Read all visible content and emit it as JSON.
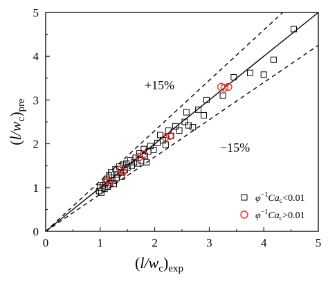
{
  "chart_data": {
    "type": "scatter",
    "xlim": [
      0,
      5
    ],
    "ylim": [
      0,
      5
    ],
    "x_ticks": [
      "0",
      "1",
      "2",
      "3",
      "4",
      "5"
    ],
    "y_ticks": [
      "0",
      "1",
      "2",
      "3",
      "4",
      "5"
    ],
    "xlabel": {
      "pre": "(",
      "main": "l/w",
      "sub": "c",
      "post": ")",
      "sub2": "exp"
    },
    "ylabel": {
      "pre": "(",
      "main": "l/w",
      "sub": "c",
      "post": ")",
      "sub2": "pre"
    },
    "grid": false,
    "legend_position": "bottom-right",
    "reference_lines": [
      {
        "kind": "solid",
        "slope": 1.0
      },
      {
        "kind": "dashed",
        "slope": 1.15,
        "label": "+15%"
      },
      {
        "kind": "dashed",
        "slope": 0.85,
        "label": "−15%"
      }
    ],
    "series": [
      {
        "label_prefix": "φ",
        "label_sup": "−1",
        "label_ca": "Ca",
        "label_sub": "c",
        "label_rel": "<0.01",
        "marker": "square",
        "color": "#000000",
        "points": [
          [
            0.98,
            0.92
          ],
          [
            1.0,
            1.0
          ],
          [
            1.02,
            0.88
          ],
          [
            1.05,
            1.05
          ],
          [
            1.08,
            0.97
          ],
          [
            1.1,
            1.12
          ],
          [
            1.12,
            1.2
          ],
          [
            1.14,
            1.02
          ],
          [
            1.16,
            1.28
          ],
          [
            1.18,
            1.1
          ],
          [
            1.2,
            1.35
          ],
          [
            1.22,
            1.16
          ],
          [
            1.25,
            1.08
          ],
          [
            1.28,
            1.42
          ],
          [
            1.3,
            1.22
          ],
          [
            1.32,
            1.3
          ],
          [
            1.35,
            1.48
          ],
          [
            1.38,
            1.34
          ],
          [
            1.4,
            1.25
          ],
          [
            1.42,
            1.52
          ],
          [
            1.45,
            1.4
          ],
          [
            1.48,
            1.55
          ],
          [
            1.5,
            1.46
          ],
          [
            1.55,
            1.62
          ],
          [
            1.58,
            1.5
          ],
          [
            1.62,
            1.58
          ],
          [
            1.65,
            1.68
          ],
          [
            1.68,
            1.55
          ],
          [
            1.72,
            1.78
          ],
          [
            1.75,
            1.62
          ],
          [
            1.8,
            1.88
          ],
          [
            1.82,
            1.72
          ],
          [
            1.85,
            1.58
          ],
          [
            1.88,
            1.82
          ],
          [
            1.92,
            1.95
          ],
          [
            1.98,
            1.86
          ],
          [
            2.05,
            2.02
          ],
          [
            2.1,
            2.2
          ],
          [
            2.15,
            2.08
          ],
          [
            2.2,
            1.98
          ],
          [
            2.25,
            2.3
          ],
          [
            2.3,
            2.18
          ],
          [
            2.38,
            2.4
          ],
          [
            2.45,
            2.3
          ],
          [
            2.55,
            2.5
          ],
          [
            2.58,
            2.72
          ],
          [
            2.62,
            2.42
          ],
          [
            2.7,
            2.38
          ],
          [
            2.8,
            2.78
          ],
          [
            2.9,
            2.65
          ],
          [
            2.95,
            3.0
          ],
          [
            3.25,
            3.1
          ],
          [
            3.45,
            3.52
          ],
          [
            3.75,
            3.62
          ],
          [
            4.0,
            3.58
          ],
          [
            4.18,
            3.92
          ],
          [
            4.55,
            4.62
          ]
        ]
      },
      {
        "label_prefix": "φ",
        "label_sup": "−1",
        "label_ca": "Ca",
        "label_sub": "c",
        "label_rel": ">0.01",
        "marker": "circle",
        "color": "#e32b2b",
        "points": [
          [
            1.12,
            1.15
          ],
          [
            1.18,
            1.12
          ],
          [
            1.38,
            1.42
          ],
          [
            1.42,
            1.36
          ],
          [
            1.72,
            1.7
          ],
          [
            1.8,
            1.76
          ],
          [
            2.2,
            2.15
          ],
          [
            2.28,
            2.18
          ],
          [
            3.22,
            3.3
          ],
          [
            3.28,
            3.28
          ],
          [
            3.35,
            3.3
          ]
        ]
      }
    ],
    "annotations": [
      "+15%",
      "−15%"
    ]
  }
}
